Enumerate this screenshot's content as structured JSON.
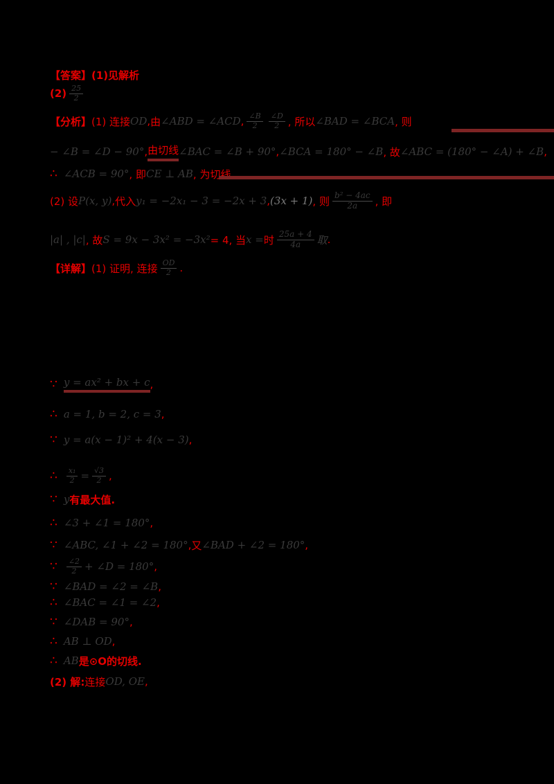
{
  "colors": {
    "background": "#000000",
    "red_annotation": "#e60000",
    "math_text": "#3a3a3a",
    "underline_bar": "#7e2424"
  },
  "document": {
    "answer_label": "【答案】",
    "analysis_label": "【分析】",
    "solution_label": "【详解】",
    "lines": [
      {
        "segments": [
          {
            "t": "【答案】(1)见解析",
            "c": "red",
            "b": 1
          }
        ]
      },
      {
        "segments": [
          {
            "t": "(2) ",
            "c": "red",
            "b": 1
          },
          {
            "k": "f",
            "n": "25",
            "d": "2"
          }
        ]
      },
      {
        "segments": [
          {
            "t": "【分析】",
            "c": "red",
            "b": 1
          },
          {
            "t": " (1) 连接 ",
            "c": "red"
          },
          {
            "t": "OD",
            "c": "blk"
          },
          {
            "t": ", ",
            "c": "red"
          },
          {
            "t": "由 ",
            "c": "red"
          },
          {
            "t": "∠ABD = ∠ACD",
            "c": "blk"
          },
          {
            "t": ", ",
            "c": "red"
          },
          {
            "k": "f",
            "n": "∠B",
            "d": "2"
          },
          {
            "k": "f",
            "n": "∠D",
            "d": "2"
          },
          {
            "t": ", 所以 ",
            "c": "red"
          },
          {
            "t": "∠BAD = ∠BCA",
            "c": "blk"
          },
          {
            "t": ", 则",
            "c": "red"
          }
        ]
      },
      {
        "segments": [
          {
            "t": "− ∠B = ∠D − 90°",
            "c": "blk"
          },
          {
            "t": ", ",
            "c": "red"
          },
          {
            "t": "由切线",
            "c": "red",
            "u": 1
          },
          {
            "t": " ∠BAC = ∠B + 90°",
            "c": "blk"
          },
          {
            "t": ", ",
            "c": "red"
          },
          {
            "t": "∠BCA = 180° − ∠B",
            "c": "blk"
          },
          {
            "t": ", 故 ",
            "c": "red"
          },
          {
            "t": "∠ABC = (180° − ∠A) + ∠B",
            "c": "blk"
          },
          {
            "t": ",",
            "c": "red"
          }
        ]
      },
      {
        "segments": [
          {
            "t": "∴",
            "c": "red",
            "m": 1
          },
          {
            "t": "∠ACB = 90°",
            "c": "blk"
          },
          {
            "t": ", 即 ",
            "c": "red"
          },
          {
            "t": "CE ⊥ AB",
            "c": "blk"
          },
          {
            "t": ", 为切线",
            "c": "red"
          }
        ]
      },
      {
        "segments": [
          {
            "t": "(2) 设 ",
            "c": "red"
          },
          {
            "t": "P(x, y)",
            "c": "blk"
          },
          {
            "t": ", ",
            "c": "red"
          },
          {
            "t": "代入 ",
            "c": "red"
          },
          {
            "t": "y₁ = −2x₁ − 3 = −2x + 3",
            "c": "blk"
          },
          {
            "t": ", ",
            "c": "red"
          },
          {
            "t": "(3x + 1)",
            "c": "gry"
          },
          {
            "t": ", 则 ",
            "c": "red"
          },
          {
            "k": "f",
            "n": "b² − 4ac",
            "d": "2a",
            "big": 1
          },
          {
            "t": ", 即",
            "c": "red"
          }
        ]
      },
      {
        "segments": [
          {
            "t": "|a| , |c|",
            "c": "blk"
          },
          {
            "t": ", 故 ",
            "c": "red"
          },
          {
            "t": "S = 9x − 3x² = −3x²",
            "c": "blk"
          },
          {
            "t": " = 4, 当 ",
            "c": "red"
          },
          {
            "t": "x =",
            "c": "blk"
          },
          {
            "t": " 时 ",
            "c": "red"
          },
          {
            "k": "f",
            "n": "25a + 4",
            "d": "4a",
            "big": 1
          },
          {
            "t": " 取",
            "c": "blk"
          },
          {
            "t": ".",
            "c": "red"
          }
        ]
      },
      {
        "segments": [
          {
            "t": "【详解】",
            "c": "red",
            "b": 1
          },
          {
            "t": " (1) 证明, 连接 ",
            "c": "red"
          },
          {
            "k": "f",
            "n": "OD",
            "d": "2"
          },
          {
            "t": ".",
            "c": "red"
          }
        ]
      },
      {
        "segments": [
          {
            "t": "∵",
            "c": "red",
            "m": 1
          },
          {
            "t": "y = ax² + bx + c",
            "c": "blk",
            "u": 1
          },
          {
            "t": ",",
            "c": "red"
          }
        ]
      },
      {
        "segments": [
          {
            "t": "∴",
            "c": "red",
            "m": 1
          },
          {
            "t": "a = 1, b = 2, c = 3",
            "c": "blk"
          },
          {
            "t": ",",
            "c": "red"
          }
        ]
      },
      {
        "segments": [
          {
            "t": "∵",
            "c": "red",
            "m": 1
          },
          {
            "t": "y = a(x − 1)² + 4(x − 3)",
            "c": "blk"
          },
          {
            "t": ",",
            "c": "red"
          }
        ]
      },
      {
        "segments": [
          {
            "t": "∴",
            "c": "red",
            "m": 1
          },
          {
            "k": "f",
            "n": "x₁",
            "d": "2"
          },
          {
            "t": "=",
            "c": "blk"
          },
          {
            "k": "f",
            "n": "√3",
            "d": "2"
          },
          {
            "t": ",",
            "c": "red"
          }
        ]
      },
      {
        "segments": [
          {
            "t": "∵",
            "c": "red",
            "m": 1
          },
          {
            "t": "y ",
            "c": "blk"
          },
          {
            "t": "有最大值.",
            "c": "red",
            "b": 1
          }
        ]
      },
      {
        "segments": [
          {
            "t": "∴",
            "c": "red",
            "m": 1
          },
          {
            "t": "∠3 + ∠1 = 180°",
            "c": "blk"
          },
          {
            "t": ",",
            "c": "red"
          }
        ]
      },
      {
        "segments": [
          {
            "t": "∵",
            "c": "red",
            "m": 1
          },
          {
            "t": "∠ABC, ∠1 + ∠2 = 180°",
            "c": "blk"
          },
          {
            "t": ", ",
            "c": "red"
          },
          {
            "t": "又 ",
            "c": "red"
          },
          {
            "t": "∠BAD + ∠2 = 180°",
            "c": "blk"
          },
          {
            "t": ",",
            "c": "red"
          }
        ]
      },
      {
        "segments": [
          {
            "t": "∵",
            "c": "red",
            "m": 1
          },
          {
            "k": "f",
            "n": "∠2",
            "d": "2"
          },
          {
            "t": "+ ∠D = 180°",
            "c": "blk"
          },
          {
            "t": ",",
            "c": "red"
          }
        ]
      },
      {
        "segments": [
          {
            "t": "∵",
            "c": "red",
            "m": 1
          },
          {
            "t": "∠BAD = ∠2 = ∠B",
            "c": "blk"
          },
          {
            "t": ",",
            "c": "red"
          }
        ]
      },
      {
        "segments": [
          {
            "t": "∴",
            "c": "red",
            "m": 1
          },
          {
            "t": "∠BAC = ∠1 = ∠2",
            "c": "blk"
          },
          {
            "t": ",",
            "c": "red"
          }
        ]
      },
      {
        "segments": [
          {
            "t": "∵",
            "c": "red",
            "m": 1
          },
          {
            "t": "∠DAB = 90°",
            "c": "blk"
          },
          {
            "t": ",",
            "c": "red"
          }
        ]
      },
      {
        "segments": [
          {
            "t": "∴",
            "c": "red",
            "m": 1
          },
          {
            "t": "AB ⊥ OD",
            "c": "blk"
          },
          {
            "t": ",",
            "c": "red"
          }
        ]
      },
      {
        "segments": [
          {
            "t": "∴",
            "c": "red",
            "m": 1
          },
          {
            "t": "AB ",
            "c": "blk"
          },
          {
            "t": "是⊙O的切线.",
            "c": "red",
            "b": 1
          }
        ]
      },
      {
        "segments": [
          {
            "t": "(2) 解: ",
            "c": "red",
            "b": 1
          },
          {
            "t": "连接 ",
            "c": "red"
          },
          {
            "t": "OD, OE",
            "c": "blk"
          },
          {
            "t": ",",
            "c": "red"
          }
        ]
      }
    ]
  }
}
